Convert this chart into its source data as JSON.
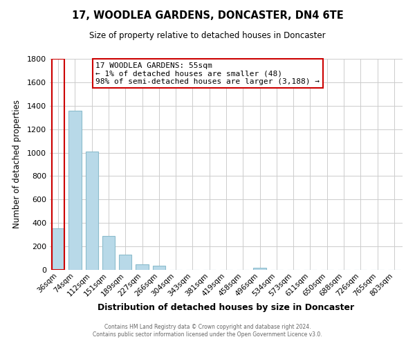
{
  "title": "17, WOODLEA GARDENS, DONCASTER, DN4 6TE",
  "subtitle": "Size of property relative to detached houses in Doncaster",
  "xlabel": "Distribution of detached houses by size in Doncaster",
  "ylabel": "Number of detached properties",
  "bar_labels": [
    "36sqm",
    "74sqm",
    "112sqm",
    "151sqm",
    "189sqm",
    "227sqm",
    "266sqm",
    "304sqm",
    "343sqm",
    "381sqm",
    "419sqm",
    "458sqm",
    "496sqm",
    "534sqm",
    "573sqm",
    "611sqm",
    "650sqm",
    "688sqm",
    "726sqm",
    "765sqm",
    "803sqm"
  ],
  "bar_values": [
    357,
    1360,
    1010,
    290,
    130,
    45,
    35,
    0,
    0,
    0,
    0,
    0,
    18,
    0,
    0,
    0,
    0,
    0,
    0,
    0,
    0
  ],
  "bar_color": "#b8d9e8",
  "highlight_color": "#cc0000",
  "ylim": [
    0,
    1800
  ],
  "yticks": [
    0,
    200,
    400,
    600,
    800,
    1000,
    1200,
    1400,
    1600,
    1800
  ],
  "annotation_lines": [
    "17 WOODLEA GARDENS: 55sqm",
    "← 1% of detached houses are smaller (48)",
    "98% of semi-detached houses are larger (3,188) →"
  ],
  "footer_line1": "Contains HM Land Registry data © Crown copyright and database right 2024.",
  "footer_line2": "Contains public sector information licensed under the Open Government Licence v3.0.",
  "background_color": "#ffffff",
  "grid_color": "#cccccc"
}
